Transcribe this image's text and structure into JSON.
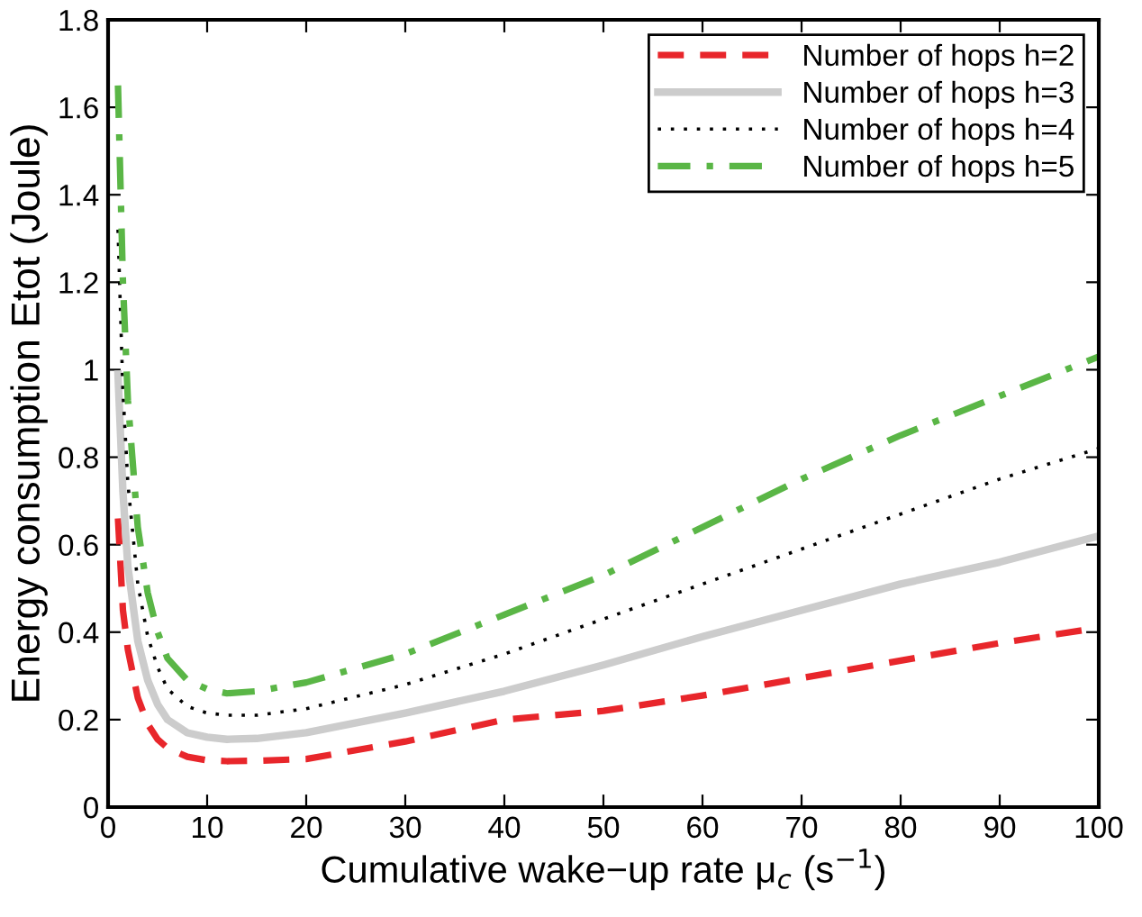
{
  "chart_data": {
    "type": "line",
    "xlabel": "Cumulative wake−up rate μ$_{c}$ (s$^{−1}$)",
    "ylabel": "Energy consumption Etot (Joule)",
    "x": [
      1,
      1.5,
      2,
      3,
      4,
      5,
      6,
      8,
      10,
      12,
      15,
      20,
      30,
      40,
      50,
      60,
      70,
      80,
      90,
      100
    ],
    "xlim": [
      0,
      100
    ],
    "xticks": [
      0,
      10,
      20,
      30,
      40,
      50,
      60,
      70,
      80,
      90,
      100
    ],
    "ylim": [
      0,
      1.8
    ],
    "yticks": [
      0,
      0.2,
      0.4,
      0.6,
      0.8,
      1,
      1.2,
      1.4,
      1.6,
      1.8
    ],
    "grid": false,
    "legend": "top right",
    "marker": "none",
    "series": [
      {
        "name": "Number of hops h=2",
        "color": "#e8262b",
        "line_style": "dashed",
        "values": [
          0.66,
          0.45,
          0.36,
          0.25,
          0.19,
          0.155,
          0.135,
          0.115,
          0.107,
          0.105,
          0.106,
          0.11,
          0.15,
          0.2,
          0.22,
          0.255,
          0.295,
          0.335,
          0.375,
          0.41
        ]
      },
      {
        "name": "Number of hops h=3",
        "color": "#cccccc",
        "line_style": "solid",
        "values": [
          0.99,
          0.72,
          0.55,
          0.38,
          0.29,
          0.235,
          0.2,
          0.17,
          0.16,
          0.155,
          0.157,
          0.17,
          0.215,
          0.265,
          0.325,
          0.39,
          0.45,
          0.51,
          0.56,
          0.62
        ]
      },
      {
        "name": "Number of hops h=4",
        "color": "#000000",
        "line_style": "dotted",
        "values": [
          1.32,
          0.95,
          0.74,
          0.51,
          0.39,
          0.32,
          0.27,
          0.23,
          0.215,
          0.21,
          0.21,
          0.225,
          0.28,
          0.35,
          0.43,
          0.51,
          0.59,
          0.67,
          0.75,
          0.82
        ]
      },
      {
        "name": "Number of hops h=5",
        "color": "#5ab646",
        "line_style": "dashdot",
        "values": [
          1.65,
          1.2,
          0.93,
          0.64,
          0.49,
          0.4,
          0.34,
          0.29,
          0.27,
          0.26,
          0.265,
          0.285,
          0.35,
          0.44,
          0.53,
          0.64,
          0.75,
          0.85,
          0.94,
          1.03
        ]
      }
    ]
  }
}
